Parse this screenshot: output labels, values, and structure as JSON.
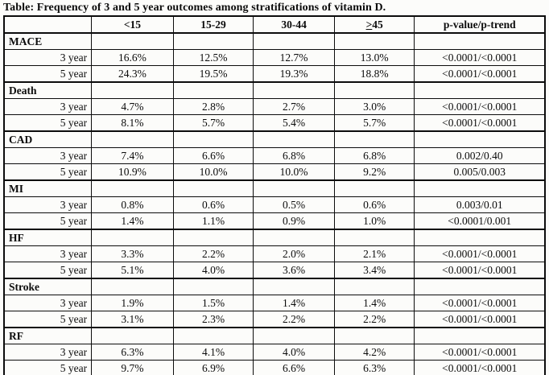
{
  "title": "Table: Frequency of 3 and 5 year outcomes among stratifications of vitamin D.",
  "colors": {
    "background": "#fcfcfa",
    "border": "#0c0c0c",
    "text": "#0c0c0c"
  },
  "table": {
    "header": {
      "col0": "",
      "col1": "<15",
      "col2": "15-29",
      "col3": "30-44",
      "col4_sym": ">",
      "col4_num": "45",
      "col5": "p-value/p-trend"
    },
    "sections": [
      {
        "name": "MACE",
        "rows": [
          {
            "label": "3 year",
            "values": [
              "16.6%",
              "12.5%",
              "12.7%",
              "13.0%"
            ],
            "p": "<0.0001/<0.0001"
          },
          {
            "label": "5 year",
            "values": [
              "24.3%",
              "19.5%",
              "19.3%",
              "18.8%"
            ],
            "p": "<0.0001/<0.0001"
          }
        ]
      },
      {
        "name": "Death",
        "rows": [
          {
            "label": "3 year",
            "values": [
              "4.7%",
              "2.8%",
              "2.7%",
              "3.0%"
            ],
            "p": "<0.0001/<0.0001"
          },
          {
            "label": "5 year",
            "values": [
              "8.1%",
              "5.7%",
              "5.4%",
              "5.7%"
            ],
            "p": "<0.0001/<0.0001"
          }
        ]
      },
      {
        "name": "CAD",
        "rows": [
          {
            "label": "3 year",
            "values": [
              "7.4%",
              "6.6%",
              "6.8%",
              "6.8%"
            ],
            "p": "0.002/0.40"
          },
          {
            "label": "5 year",
            "values": [
              "10.9%",
              "10.0%",
              "10.0%",
              "9.2%"
            ],
            "p": "0.005/0.003"
          }
        ]
      },
      {
        "name": "MI",
        "rows": [
          {
            "label": "3 year",
            "values": [
              "0.8%",
              "0.6%",
              "0.5%",
              "0.6%"
            ],
            "p": "0.003/0.01"
          },
          {
            "label": "5 year",
            "values": [
              "1.4%",
              "1.1%",
              "0.9%",
              "1.0%"
            ],
            "p": "<0.0001/0.001"
          }
        ]
      },
      {
        "name": "HF",
        "rows": [
          {
            "label": "3 year",
            "values": [
              "3.3%",
              "2.2%",
              "2.0%",
              "2.1%"
            ],
            "p": "<0.0001/<0.0001"
          },
          {
            "label": "5 year",
            "values": [
              "5.1%",
              "4.0%",
              "3.6%",
              "3.4%"
            ],
            "p": "<0.0001/<0.0001"
          }
        ]
      },
      {
        "name": "Stroke",
        "rows": [
          {
            "label": "3 year",
            "values": [
              "1.9%",
              "1.5%",
              "1.4%",
              "1.4%"
            ],
            "p": "<0.0001/<0.0001"
          },
          {
            "label": "5 year",
            "values": [
              "3.1%",
              "2.3%",
              "2.2%",
              "2.2%"
            ],
            "p": "<0.0001/<0.0001"
          }
        ]
      },
      {
        "name": "RF",
        "rows": [
          {
            "label": "3 year",
            "values": [
              "6.3%",
              "4.1%",
              "4.0%",
              "4.2%"
            ],
            "p": "<0.0001/<0.0001"
          },
          {
            "label": "5 year",
            "values": [
              "9.7%",
              "6.9%",
              "6.6%",
              "6.3%"
            ],
            "p": "<0.0001/<0.0001"
          }
        ]
      }
    ]
  }
}
